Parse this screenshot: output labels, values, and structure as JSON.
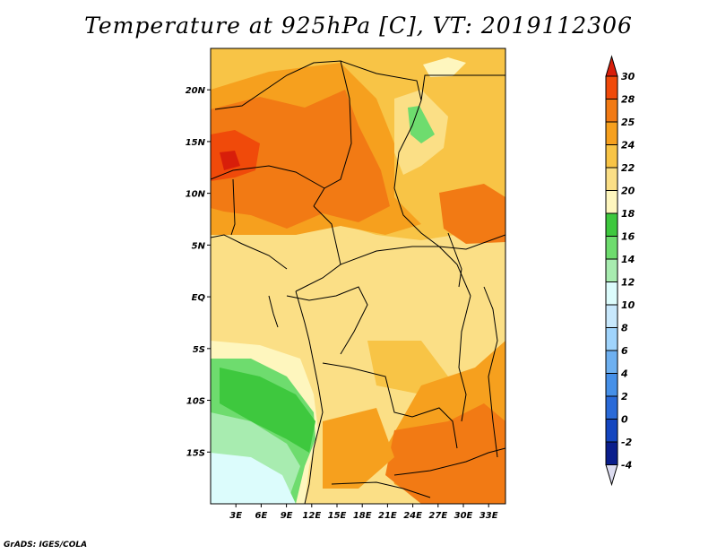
{
  "title": "Temperature at 925hPa [C], VT: 2019112306",
  "footer": "GrADS: IGES/COLA",
  "map": {
    "region": "Central Africa",
    "variable": "Temperature at 925hPa",
    "units": "C",
    "valid_time": "2019112306",
    "lon_range": [
      0,
      35
    ],
    "lat_range": [
      -20,
      24
    ],
    "lat_ticks": [
      {
        "value": 20,
        "label": "20N"
      },
      {
        "value": 15,
        "label": "15N"
      },
      {
        "value": 10,
        "label": "10N"
      },
      {
        "value": 5,
        "label": "5N"
      },
      {
        "value": 0,
        "label": "EQ"
      },
      {
        "value": -5,
        "label": "5S"
      },
      {
        "value": -10,
        "label": "10S"
      },
      {
        "value": -15,
        "label": "15S"
      }
    ],
    "lon_ticks": [
      {
        "value": 3,
        "label": "3E"
      },
      {
        "value": 6,
        "label": "6E"
      },
      {
        "value": 9,
        "label": "9E"
      },
      {
        "value": 12,
        "label": "12E"
      },
      {
        "value": 15,
        "label": "15E"
      },
      {
        "value": 18,
        "label": "18E"
      },
      {
        "value": 21,
        "label": "21E"
      },
      {
        "value": 24,
        "label": "24E"
      },
      {
        "value": 27,
        "label": "27E"
      },
      {
        "value": 30,
        "label": "30E"
      },
      {
        "value": 33,
        "label": "33E"
      }
    ]
  },
  "colorbar": {
    "levels": [
      "30",
      "28",
      "25",
      "24",
      "22",
      "20",
      "18",
      "16",
      "14",
      "12",
      "10",
      "8",
      "6",
      "4",
      "2",
      "0",
      "-2",
      "-4"
    ],
    "colors": [
      "#d81e0a",
      "#f04a0a",
      "#f27a14",
      "#f6a01e",
      "#f8c446",
      "#fbdf86",
      "#fef6be",
      "#3ec83e",
      "#6edc6e",
      "#a8ecb0",
      "#dcfcfc",
      "#c8e8fc",
      "#a0d4fc",
      "#6eb0f0",
      "#4690e8",
      "#2a6ad8",
      "#1446c0",
      "#0a1e8c",
      "#050a60"
    ],
    "top_arrow_color": "#d81e0a",
    "bottom_arrow_color": "#dcdcf0"
  }
}
